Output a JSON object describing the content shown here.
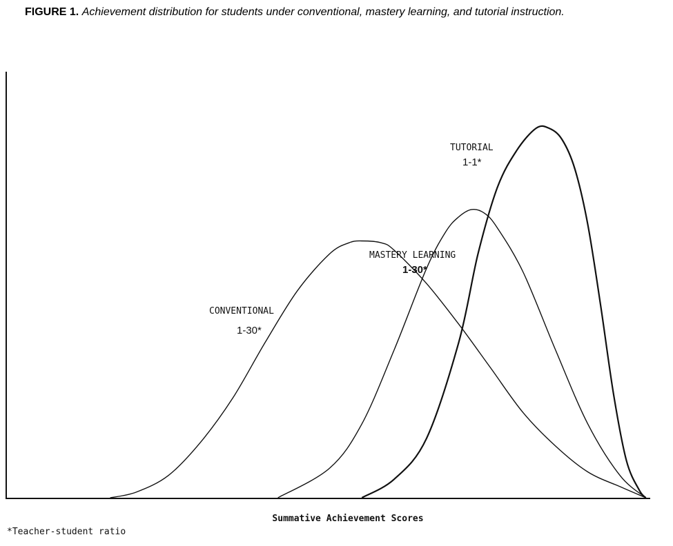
{
  "figure": {
    "label": "FIGURE 1.",
    "caption": "Achievement distribution for students under conventional, mastery learning, and tutorial instruction."
  },
  "footnote": "*Teacher-student ratio",
  "chart_data": {
    "type": "line",
    "title": "Achievement distribution for students under conventional, mastery learning, and tutorial instruction.",
    "xlabel": "Summative Achievement Scores",
    "ylabel": "",
    "xlim": [
      0,
      100
    ],
    "ylim": [
      0,
      100
    ],
    "grid": false,
    "legend": "inline labels",
    "series": [
      {
        "name": "CONVENTIONAL",
        "ratio": "1-30*",
        "stroke_weight": "thin",
        "x": [
          16,
          20,
          25,
          30,
          35,
          40,
          45,
          50,
          53,
          55,
          58,
          60,
          65,
          70,
          75,
          80,
          85,
          90,
          95,
          99
        ],
        "y": [
          0,
          1.5,
          6,
          15,
          27,
          42,
          56,
          66,
          69,
          69.5,
          69,
          67,
          58,
          47,
          35,
          23,
          14,
          7,
          3,
          0
        ]
      },
      {
        "name": "MASTERY LEARNING",
        "ratio": "1-30*",
        "stroke_weight": "thin",
        "x": [
          42,
          50,
          55,
          60,
          65,
          68,
          70,
          72,
          74,
          76,
          80,
          85,
          90,
          95,
          99
        ],
        "y": [
          0,
          8,
          20,
          40,
          62,
          72,
          76,
          78,
          77,
          73,
          61,
          40,
          20,
          6,
          0
        ]
      },
      {
        "name": "TUTORIAL",
        "ratio": "1-1*",
        "stroke_weight": "bold",
        "x": [
          55,
          60,
          65,
          70,
          73,
          76,
          79,
          82,
          84,
          86,
          88,
          90,
          92,
          94,
          96,
          98,
          99
        ],
        "y": [
          0,
          5,
          16,
          42,
          66,
          84,
          94,
          100,
          100,
          97,
          89,
          74,
          52,
          28,
          10,
          2,
          0
        ]
      }
    ]
  }
}
